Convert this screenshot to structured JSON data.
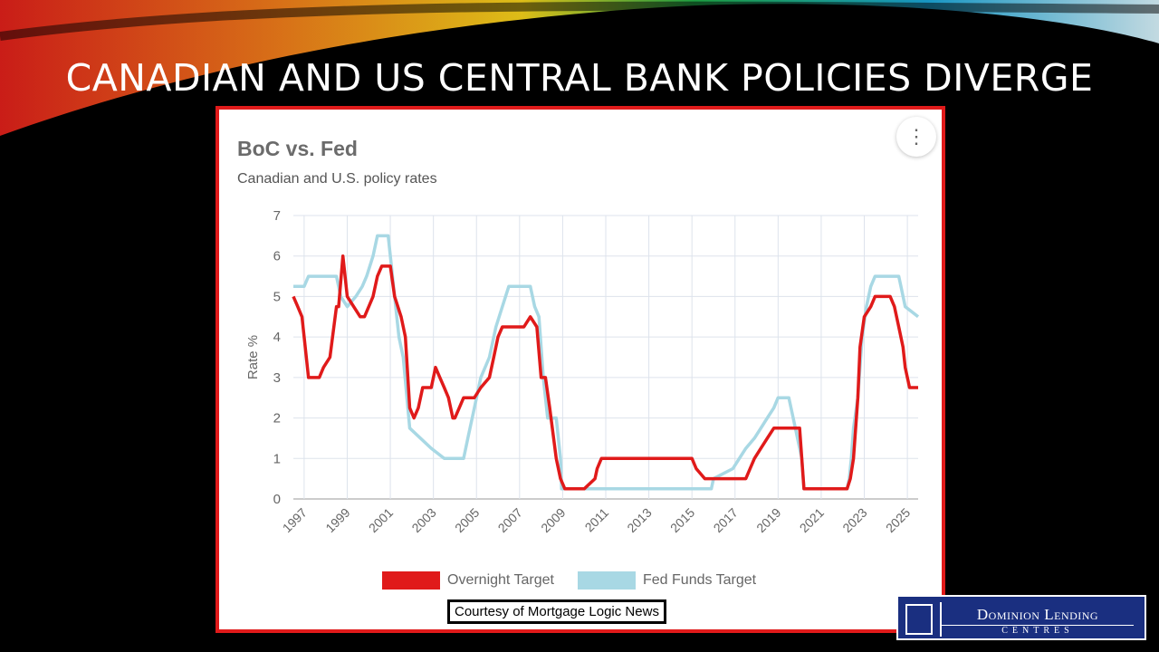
{
  "slide": {
    "title": "CANADIAN AND US CENTRAL BANK POLICIES DIVERGE",
    "credit": "Courtesy of Mortgage Logic News",
    "logo_line1": "Dominion Lending",
    "logo_line2": "CENTRES"
  },
  "chart_data": {
    "type": "line",
    "title": "BoC vs. Fed",
    "subtitle": "Canadian and U.S. policy rates",
    "ylabel": "Rate %",
    "xlabel": "",
    "ylim": [
      0,
      7
    ],
    "xlim": [
      1996.5,
      2025.5
    ],
    "yticks": [
      0,
      1,
      2,
      3,
      4,
      5,
      6,
      7
    ],
    "xticks": [
      "1997",
      "1999",
      "2001",
      "2003",
      "2005",
      "2007",
      "2009",
      "2011",
      "2013",
      "2015",
      "2017",
      "2019",
      "2021",
      "2023",
      "2025"
    ],
    "grid": true,
    "legend_position": "bottom",
    "series": [
      {
        "name": "Overnight Target",
        "color": "#e01a1a",
        "x": [
          1996.5,
          1996.7,
          1996.9,
          1997.0,
          1997.2,
          1997.7,
          1997.9,
          1998.2,
          1998.5,
          1998.6,
          1998.8,
          1999.0,
          1999.3,
          1999.6,
          1999.8,
          2000.0,
          2000.2,
          2000.4,
          2000.6,
          2000.8,
          2001.0,
          2001.2,
          2001.5,
          2001.7,
          2001.9,
          2002.1,
          2002.3,
          2002.5,
          2002.9,
          2003.1,
          2003.3,
          2003.5,
          2003.7,
          2003.9,
          2004.0,
          2004.2,
          2004.4,
          2004.7,
          2004.9,
          2005.2,
          2005.6,
          2005.8,
          2006.0,
          2006.2,
          2006.4,
          2006.6,
          2006.9,
          2007.2,
          2007.5,
          2007.8,
          2008.0,
          2008.2,
          2008.4,
          2008.7,
          2008.9,
          2009.1,
          2009.3,
          2010.0,
          2010.5,
          2010.6,
          2010.8,
          2011.0,
          2015.0,
          2015.2,
          2015.6,
          2015.9,
          2017.5,
          2017.7,
          2017.9,
          2018.2,
          2018.5,
          2018.8,
          2019.0,
          2020.0,
          2020.2,
          2022.2,
          2022.35,
          2022.5,
          2022.7,
          2022.8,
          2023.0,
          2023.3,
          2023.5,
          2024.2,
          2024.4,
          2024.6,
          2024.8,
          2024.9,
          2025.1,
          2025.3,
          2025.5
        ],
        "values": [
          5.0,
          4.75,
          4.5,
          4.0,
          3.0,
          3.0,
          3.25,
          3.5,
          4.75,
          4.75,
          6.0,
          5.0,
          4.75,
          4.5,
          4.5,
          4.75,
          5.0,
          5.5,
          5.75,
          5.75,
          5.75,
          5.0,
          4.5,
          4.0,
          2.25,
          2.0,
          2.25,
          2.75,
          2.75,
          3.25,
          3.0,
          2.75,
          2.5,
          2.0,
          2.0,
          2.25,
          2.5,
          2.5,
          2.5,
          2.75,
          3.0,
          3.5,
          4.0,
          4.25,
          4.25,
          4.25,
          4.25,
          4.25,
          4.5,
          4.25,
          3.0,
          3.0,
          2.25,
          1.0,
          0.5,
          0.25,
          0.25,
          0.25,
          0.5,
          0.75,
          1.0,
          1.0,
          1.0,
          0.75,
          0.5,
          0.5,
          0.5,
          0.75,
          1.0,
          1.25,
          1.5,
          1.75,
          1.75,
          1.75,
          0.25,
          0.25,
          0.5,
          1.0,
          2.5,
          3.75,
          4.5,
          4.75,
          5.0,
          5.0,
          4.75,
          4.25,
          3.75,
          3.25,
          2.75,
          2.75,
          2.75
        ]
      },
      {
        "name": "Fed Funds Target",
        "color": "#a8d8e4",
        "x": [
          1996.5,
          1997.0,
          1997.2,
          1998.5,
          1998.7,
          1999.0,
          1999.4,
          1999.7,
          1999.9,
          2000.2,
          2000.4,
          2000.9,
          2001.0,
          2001.2,
          2001.4,
          2001.6,
          2001.9,
          2002.9,
          2003.5,
          2004.4,
          2004.6,
          2004.9,
          2005.2,
          2005.6,
          2005.9,
          2006.2,
          2006.5,
          2007.5,
          2007.7,
          2007.9,
          2008.1,
          2008.3,
          2008.7,
          2008.9,
          2008.95,
          2015.9,
          2016.0,
          2016.9,
          2017.2,
          2017.5,
          2017.9,
          2018.2,
          2018.5,
          2018.8,
          2019.0,
          2019.5,
          2019.6,
          2019.8,
          2020.1,
          2020.2,
          2022.2,
          2022.3,
          2022.4,
          2022.5,
          2022.7,
          2022.8,
          2022.9,
          2023.1,
          2023.3,
          2023.5,
          2024.6,
          2024.7,
          2024.9,
          2025.5
        ],
        "values": [
          5.25,
          5.25,
          5.5,
          5.5,
          5.0,
          4.75,
          5.0,
          5.25,
          5.5,
          6.0,
          6.5,
          6.5,
          6.0,
          5.0,
          4.0,
          3.5,
          1.75,
          1.25,
          1.0,
          1.0,
          1.5,
          2.25,
          3.0,
          3.5,
          4.25,
          4.75,
          5.25,
          5.25,
          4.75,
          4.5,
          3.0,
          2.0,
          2.0,
          1.0,
          0.25,
          0.25,
          0.5,
          0.75,
          1.0,
          1.25,
          1.5,
          1.75,
          2.0,
          2.25,
          2.5,
          2.5,
          2.25,
          1.75,
          1.0,
          0.25,
          0.25,
          0.5,
          1.0,
          1.75,
          2.5,
          3.25,
          4.0,
          4.75,
          5.25,
          5.5,
          5.5,
          5.25,
          4.75,
          4.5
        ]
      }
    ]
  }
}
